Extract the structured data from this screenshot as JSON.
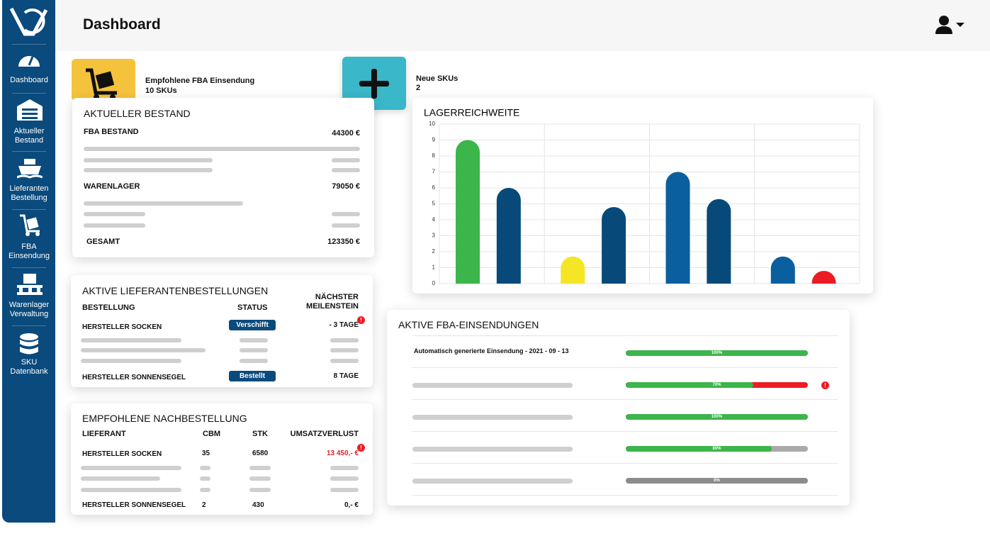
{
  "sidebar": {
    "items": [
      "Dashboard",
      "Aktueller Bestand",
      "Lieferanten Bestellung",
      "FBA Einsendung",
      "Warenlager Verwaltung",
      "SKU Datenbank"
    ]
  },
  "header": {
    "title": "Dashboard"
  },
  "tiles": [
    {
      "label": "Empfohlene FBA Einsendung",
      "value": "10 SKUs"
    },
    {
      "label": "Neue SKUs",
      "value": "2"
    }
  ],
  "bestand": {
    "title": "AKTUELLER BESTAND",
    "rows": [
      [
        "FBA BESTAND",
        "44300 €"
      ],
      [
        "WARENLAGER",
        "79050 €"
      ],
      [
        "GESAMT",
        "123350 €"
      ]
    ]
  },
  "lieferanten": {
    "title": "AKTIVE LIEFERANTENBESTELLUNGEN",
    "headers": [
      "BESTELLUNG",
      "STATUS",
      "NÄCHSTER MEILENSTEIN"
    ],
    "rows": [
      [
        "HERSTELLER SOCKEN",
        "Verschifft",
        "- 3 TAGE"
      ],
      [
        "HERSTELLER SONNENSEGEL",
        "Bestellt",
        "8 TAGE"
      ]
    ]
  },
  "nachbestellung": {
    "title": "EMPFOHLENE NACHBESTELLUNG",
    "headers": [
      "LIEFERANT",
      "CBM",
      "STK",
      "UMSATZVERLUST"
    ],
    "rows": [
      [
        "HERSTELLER SOCKEN",
        "35",
        "6580",
        "13 450,- €"
      ],
      [
        "HERSTELLER SONNENSEGEL",
        "2",
        "430",
        "0,- €"
      ]
    ]
  },
  "chart_data": {
    "type": "bar",
    "title": "LAGERREICHWEITE",
    "categories": [
      null,
      null,
      null,
      null,
      null,
      null,
      null,
      null
    ],
    "values": [
      9,
      6,
      1.7,
      4.8,
      7,
      5.3,
      1.7,
      0.8
    ],
    "colors": [
      "#3cb54a",
      "#074a7a",
      "#f5e625",
      "#074a7a",
      "#0a5f9e",
      "#074a7a",
      "#0a5f9e",
      "#ed1c24"
    ],
    "ylim": [
      0,
      10
    ],
    "yticks": [
      0,
      1,
      2,
      3,
      4,
      5,
      6,
      7,
      8,
      9,
      10
    ],
    "grid": true
  },
  "fba": {
    "title": "AKTIVE FBA-EINSENDUNGEN",
    "rows": [
      "Automatisch generierte Einsendung - 2021 - 09 - 13"
    ],
    "progress": [
      100,
      70,
      100,
      80,
      0
    ],
    "progress_labels": [
      "100%",
      "70%",
      "100%",
      "80%",
      "0%"
    ],
    "bar_color": "#3cb54a",
    "track_colors": [
      "#aaaaaa",
      "#ed1c24",
      "#aaaaaa",
      "#aaaaaa",
      "#8c8c8c"
    ]
  }
}
